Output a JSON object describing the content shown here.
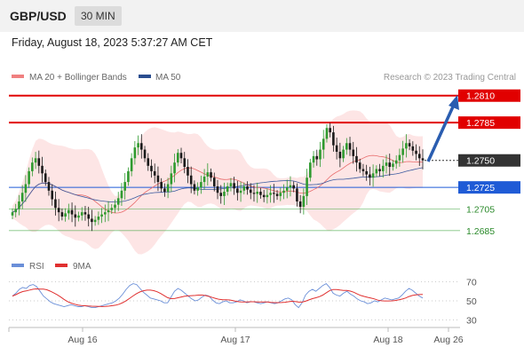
{
  "header": {
    "symbol": "GBP/USD",
    "timeframe": "30 MIN"
  },
  "timestamp": "Friday, August 18, 2023 5:37:27 AM CET",
  "legend": {
    "bollinger": "MA 20 + Bollinger Bands",
    "ma50": "MA 50"
  },
  "credit": "Research © 2023 Trading Central",
  "colors": {
    "resistance": "#e10000",
    "support": "#1f5bd6",
    "green": "#4aaa4a",
    "current": "#333333",
    "arrow": "#2a5db0",
    "bands": "#fcdcdc",
    "rsi": "#6a8fd8",
    "rsi_ma": "#e03030"
  },
  "chart_data": [
    {
      "type": "candlestick",
      "ylim": [
        1.2675,
        1.2818
      ],
      "x_ticks": [
        "Aug 16",
        "Aug 17",
        "Aug 18",
        "Aug 26"
      ],
      "levels": [
        {
          "label": "1.2810",
          "value": 1.281,
          "kind": "resistance"
        },
        {
          "label": "1.2785",
          "value": 1.2785,
          "kind": "resistance"
        },
        {
          "label": "1.2750",
          "value": 1.275,
          "kind": "current"
        },
        {
          "label": "1.2725",
          "value": 1.2725,
          "kind": "support"
        },
        {
          "label": "1.2705",
          "value": 1.2705,
          "kind": "support-green"
        },
        {
          "label": "1.2685",
          "value": 1.2685,
          "kind": "support-green"
        }
      ],
      "close": [
        1.2702,
        1.2705,
        1.2712,
        1.272,
        1.2728,
        1.274,
        1.2748,
        1.2752,
        1.2745,
        1.2738,
        1.273,
        1.2722,
        1.2714,
        1.2706,
        1.2702,
        1.2698,
        1.2701,
        1.2704,
        1.27,
        1.2697,
        1.2699,
        1.2702,
        1.27,
        1.2696,
        1.2693,
        1.2695,
        1.2698,
        1.27,
        1.2702,
        1.2704,
        1.2706,
        1.2709,
        1.2715,
        1.2722,
        1.273,
        1.274,
        1.2752,
        1.2762,
        1.2766,
        1.276,
        1.2752,
        1.2745,
        1.274,
        1.2736,
        1.273,
        1.2724,
        1.2721,
        1.2728,
        1.2738,
        1.2748,
        1.2757,
        1.2752,
        1.2744,
        1.2736,
        1.2728,
        1.2722,
        1.2725,
        1.273,
        1.2735,
        1.2739,
        1.2734,
        1.2726,
        1.272,
        1.2717,
        1.2721,
        1.2726,
        1.2729,
        1.2724,
        1.272,
        1.2722,
        1.2726,
        1.2723,
        1.272,
        1.2719,
        1.2721,
        1.2718,
        1.2716,
        1.2718,
        1.272,
        1.2719,
        1.2717,
        1.272,
        1.2722,
        1.2725,
        1.2727,
        1.2724,
        1.2712,
        1.2707,
        1.2717,
        1.2734,
        1.2748,
        1.2754,
        1.2751,
        1.276,
        1.277,
        1.278,
        1.2776,
        1.2764,
        1.2758,
        1.2752,
        1.276,
        1.2766,
        1.276,
        1.2754,
        1.2748,
        1.2742,
        1.274,
        1.2737,
        1.2734,
        1.2738,
        1.2742,
        1.274,
        1.2745,
        1.2748,
        1.2744,
        1.2747,
        1.275,
        1.2755,
        1.2761,
        1.2766,
        1.2763,
        1.2759,
        1.2756,
        1.2752,
        1.275
      ]
    },
    {
      "type": "line",
      "title": "RSI",
      "series": [
        {
          "name": "RSI"
        },
        {
          "name": "9MA"
        }
      ],
      "ylim": [
        25,
        75
      ],
      "y_ticks": [
        "70",
        "50",
        "30"
      ],
      "rsi": [
        55,
        58,
        62,
        64,
        63,
        66,
        67,
        65,
        60,
        55,
        52,
        49,
        47,
        46,
        45,
        44,
        45,
        46,
        45,
        44,
        44,
        45,
        44,
        43,
        43,
        44,
        45,
        46,
        47,
        48,
        50,
        53,
        57,
        62,
        66,
        68,
        67,
        63,
        59,
        56,
        53,
        52,
        51,
        50,
        48,
        48,
        54,
        60,
        63,
        61,
        58,
        55,
        52,
        50,
        51,
        54,
        56,
        55,
        51,
        48,
        47,
        49,
        50,
        48,
        48,
        49,
        51,
        50,
        48,
        49,
        49,
        48,
        47,
        48,
        49,
        48,
        47,
        48,
        50,
        52,
        53,
        51,
        46,
        43,
        48,
        56,
        60,
        62,
        60,
        63,
        66,
        68,
        64,
        58,
        56,
        55,
        58,
        60,
        57,
        55,
        52,
        50,
        49,
        47,
        48,
        50,
        49,
        51,
        53,
        52,
        51,
        52,
        53,
        56,
        60,
        63,
        61,
        58,
        55,
        53
      ]
    }
  ]
}
